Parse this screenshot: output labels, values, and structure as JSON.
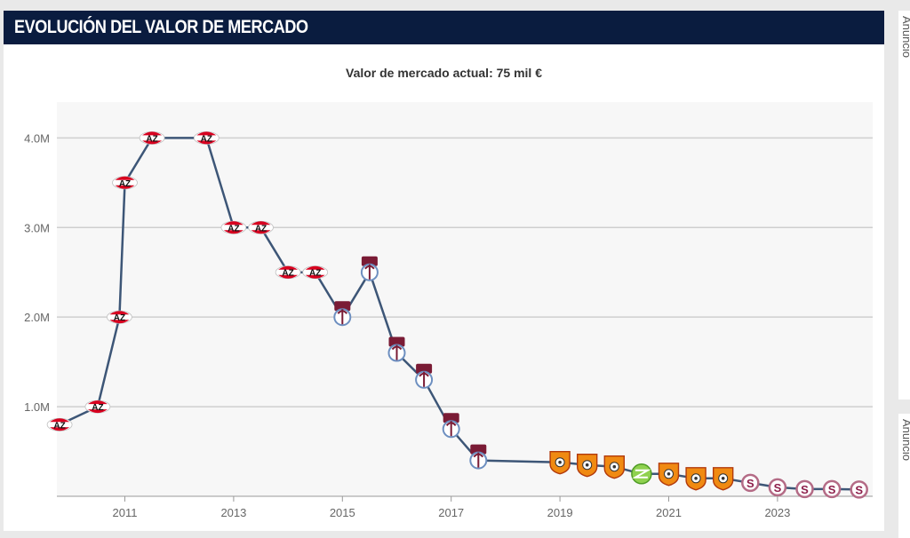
{
  "header": {
    "title": "EVOLUCIÓN DEL VALOR DE MERCADO"
  },
  "subtitle": "Valor de mercado actual: 75 mil €",
  "sidebar": {
    "ad_label_top": "Anuncio",
    "ad_label_bottom": "Anuncio"
  },
  "colors": {
    "header_bg": "#0a1c3f",
    "line": "#3d5677",
    "plot_bg": "#f7f7f7",
    "grid": "#cfcfcf"
  },
  "chart_data": {
    "type": "line",
    "title": "",
    "xlabel": "",
    "ylabel": "",
    "x_tick_labels": [
      "2011",
      "2013",
      "2015",
      "2017",
      "2019",
      "2021",
      "2023"
    ],
    "y_tick_labels": [
      "1.0M",
      "2.0M",
      "3.0M",
      "4.0M"
    ],
    "y_ticks": [
      1.0,
      2.0,
      3.0,
      4.0
    ],
    "ylim": [
      0,
      4.4
    ],
    "xlim": [
      2009.75,
      2024.75
    ],
    "grid": true,
    "series": [
      {
        "x": [
          2009.8,
          2010.5,
          2010.9,
          2011.0,
          2011.5,
          2012.5,
          2013.0,
          2013.5,
          2014.0,
          2014.5,
          2015.0,
          2015.5,
          2016.0,
          2016.5,
          2017.0,
          2017.5,
          2019.0,
          2019.5,
          2020.0,
          2020.5,
          2021.0,
          2021.5,
          2022.0,
          2022.5,
          2023.0,
          2023.5,
          2024.0,
          2024.5
        ],
        "values": [
          0.8,
          1.0,
          2.0,
          3.5,
          4.0,
          4.0,
          3.0,
          3.0,
          2.5,
          2.5,
          2.0,
          2.5,
          1.6,
          1.3,
          0.75,
          0.4,
          0.38,
          0.35,
          0.33,
          0.25,
          0.25,
          0.2,
          0.2,
          0.15,
          0.1,
          0.08,
          0.08,
          0.075
        ],
        "club_icons": [
          "az-badge",
          "az-badge",
          "az-badge",
          "az-badge",
          "az-badge",
          "az-badge",
          "az-badge",
          "az-badge",
          "az-badge",
          "az-badge",
          "trabzonspor-badge",
          "trabzonspor-badge",
          "trabzonspor-badge",
          "trabzonspor-badge",
          "trabzonspor-badge",
          "trabzonspor-badge",
          "herediano-badge",
          "herediano-badge",
          "herediano-badge",
          "green-club-badge",
          "herediano-badge",
          "herediano-badge",
          "herediano-badge",
          "saprissa-badge",
          "saprissa-badge",
          "saprissa-badge",
          "saprissa-badge",
          "saprissa-badge"
        ]
      }
    ]
  }
}
